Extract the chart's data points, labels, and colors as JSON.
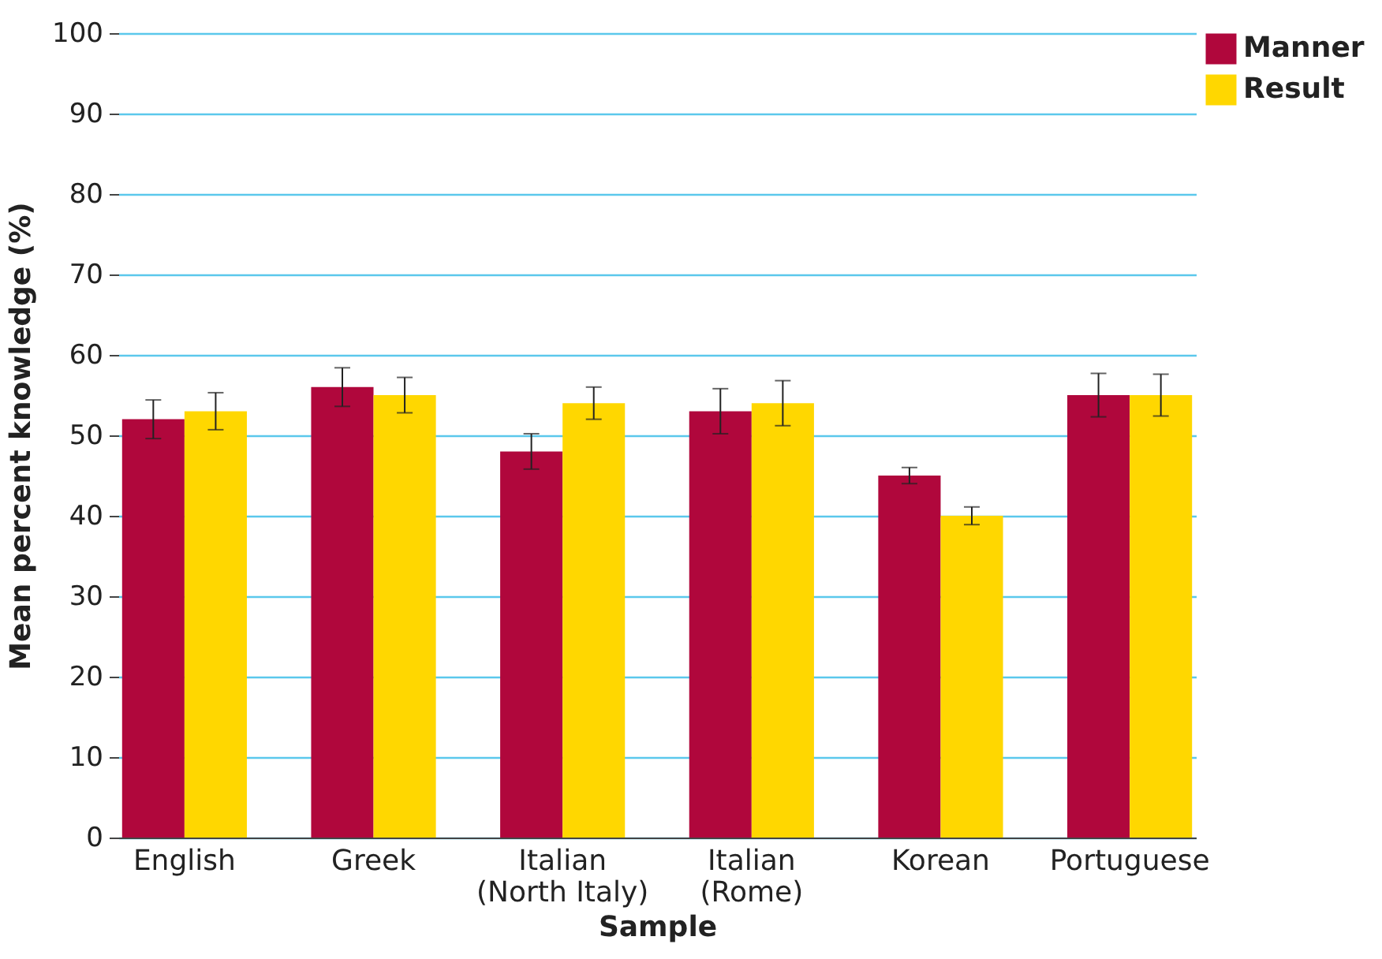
{
  "chart_data": {
    "type": "bar",
    "xlabel": "Sample",
    "ylabel": "Mean percent knowledge (%)",
    "categories": [
      "English",
      "Greek",
      "Italian\n(North Italy)",
      "Italian\n(Rome)",
      "Korean",
      "Portuguese"
    ],
    "series": [
      {
        "name": "Manner",
        "color": "#b0073c",
        "values": [
          52,
          56,
          48,
          53,
          45,
          55
        ],
        "errors": [
          2.4,
          2.4,
          2.2,
          2.8,
          1,
          2.7
        ]
      },
      {
        "name": "Result",
        "color": "#ffd700",
        "values": [
          53,
          55,
          54,
          54,
          40,
          55
        ],
        "errors": [
          2.3,
          2.2,
          2,
          2.8,
          1.1,
          2.6
        ]
      }
    ],
    "ylim": [
      0,
      100
    ],
    "yticks": [
      0,
      10,
      20,
      30,
      40,
      50,
      60,
      70,
      80,
      90,
      100
    ],
    "grid": "y",
    "legend": "top right"
  }
}
